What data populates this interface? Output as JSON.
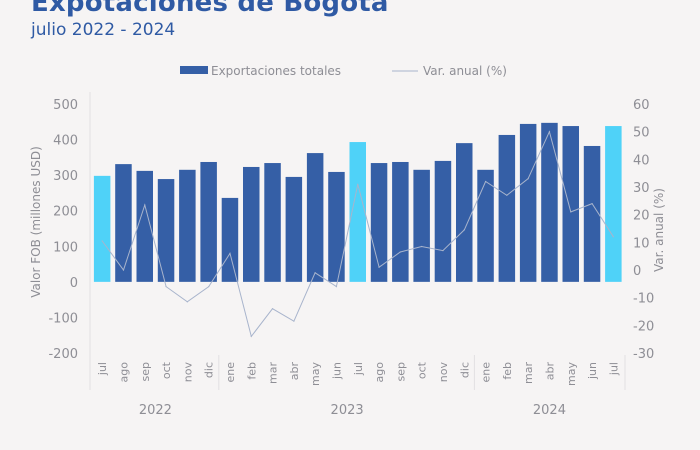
{
  "title": "Expotaciones de Bogota",
  "subtitle": "julio 2022 - 2024",
  "chart_data": {
    "type": "bar+line",
    "title": "Expotaciones de Bogota",
    "subtitle": "julio 2022 - 2024",
    "categories": [
      "jul",
      "ago",
      "sep",
      "oct",
      "nov",
      "dic",
      "ene",
      "feb",
      "mar",
      "abr",
      "may",
      "jun",
      "jul",
      "ago",
      "sep",
      "oct",
      "nov",
      "dic",
      "ene",
      "feb",
      "mar",
      "abr",
      "may",
      "jun",
      "jul"
    ],
    "years": [
      {
        "label": "2022",
        "months": 6
      },
      {
        "label": "2023",
        "months": 12
      },
      {
        "label": "2024",
        "months": 7
      }
    ],
    "series": [
      {
        "name": "Exportaciones totales",
        "type": "bar",
        "axis": "left",
        "values": [
          298,
          331,
          312,
          289,
          315,
          337,
          236,
          323,
          334,
          295,
          362,
          309,
          393,
          334,
          337,
          315,
          340,
          390,
          315,
          413,
          444,
          447,
          438,
          382,
          438
        ]
      },
      {
        "name": "Var. anual (%)",
        "type": "line",
        "axis": "right",
        "values": [
          10.5,
          0,
          23.5,
          -6,
          -11.5,
          -6,
          6,
          -24,
          -14,
          -18.5,
          -1,
          -6,
          31,
          1,
          6.5,
          8.5,
          7,
          14.5,
          32,
          27,
          33,
          50,
          21,
          24,
          12
        ]
      }
    ],
    "highlight_months": [
      "jul"
    ],
    "ylabel": "Valor FOB (millones USD)",
    "ylabel_right": "Var. anual (%)",
    "ylim": [
      -200,
      500
    ],
    "yticks": [
      -200,
      -100,
      0,
      100,
      200,
      300,
      400,
      500
    ],
    "ylim_right": [
      -30,
      60
    ],
    "yticks_right": [
      -30,
      -20,
      -10,
      0,
      10,
      20,
      30,
      40,
      50,
      60
    ],
    "legend_position": "top",
    "grid": false,
    "colors": {
      "bar": "#355fa6",
      "bar_highlight": "#4fd2f8",
      "line": "#a8b4cc",
      "title": "#2f5aa4",
      "text": "#8e8e95"
    }
  }
}
